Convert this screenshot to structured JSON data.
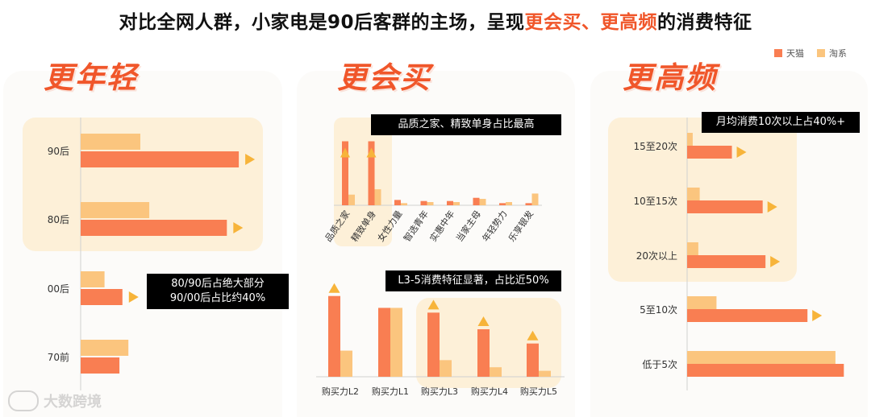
{
  "title": {
    "part1": "对比全网人群，小家电是90后客群的主场，呈现",
    "hl1": "更会买",
    "sep": "、",
    "hl2": "更高频",
    "part2": "的消费特征"
  },
  "legend": {
    "items": [
      {
        "label": "天猫",
        "color": "#f97e52"
      },
      {
        "label": "淘系",
        "color": "#fbc57e"
      }
    ]
  },
  "colors": {
    "tmall": "#f97e52",
    "taoxi": "#fbc57e",
    "highlight": "#fdf0d8",
    "arrow": "#f7b43a",
    "accent": "#f0562a"
  },
  "panels": {
    "younger": {
      "title": "更年轻",
      "callout_line1": "80/90后占绝大部分",
      "callout_line2": "90/00后占比约40%"
    },
    "buyer": {
      "title": "更会买",
      "callout1": "品质之家、精致单身占比最高",
      "callout2": "L3-5消费特征显著，占比近50%"
    },
    "frequent": {
      "title": "更高频",
      "callout": "月均消费10次以上占40%+"
    }
  },
  "watermark": {
    "text": "大数跨境"
  },
  "chart_data": [
    {
      "type": "bar",
      "orientation": "horizontal",
      "title": "更年轻",
      "categories": [
        "90后",
        "80后",
        "00后",
        "70前"
      ],
      "series": [
        {
          "name": "淘系",
          "values": [
            20,
            23,
            8,
            16
          ]
        },
        {
          "name": "天猫",
          "values": [
            53,
            49,
            14,
            13
          ]
        }
      ],
      "highlighted": [
        "90后",
        "80后"
      ],
      "arrows": [
        "90后",
        "80后",
        "00后"
      ]
    },
    {
      "type": "bar",
      "title": "更会买",
      "categories": [
        "品质之家",
        "精致单身",
        "女性力量",
        "智选青年",
        "实惠中年",
        "当家主母",
        "年轻势力",
        "乐享银发"
      ],
      "series": [
        {
          "name": "天猫",
          "values": [
            30,
            30,
            2.5,
            2,
            2,
            3.5,
            1,
            1
          ]
        },
        {
          "name": "淘系",
          "values": [
            5,
            7.5,
            1,
            1.5,
            1.5,
            3,
            1.5,
            5.5
          ]
        }
      ],
      "highlighted": [
        "品质之家",
        "精致单身"
      ],
      "arrows": [
        "品质之家",
        "精致单身"
      ]
    },
    {
      "type": "bar",
      "categories": [
        "购买力L2",
        "购买力L1",
        "购买力L3",
        "购买力L4",
        "购买力L5"
      ],
      "series": [
        {
          "name": "天猫",
          "values": [
            34,
            29,
            27,
            20,
            14
          ]
        },
        {
          "name": "淘系",
          "values": [
            11,
            29,
            7,
            4,
            2.5
          ]
        }
      ],
      "highlighted": [
        "购买力L3",
        "购买力L4",
        "购买力L5"
      ],
      "arrows": [
        "购买力L2",
        "购买力L3",
        "购买力L4",
        "购买力L5"
      ]
    },
    {
      "type": "bar",
      "orientation": "horizontal",
      "title": "更高频",
      "categories": [
        "15至20次",
        "10至15次",
        "20次以上",
        "5至10次",
        "低于5次"
      ],
      "series": [
        {
          "name": "淘系",
          "values": [
            2,
            4.5,
            4,
            10.5,
            53
          ]
        },
        {
          "name": "天猫",
          "values": [
            16,
            27,
            28,
            43,
            56
          ]
        }
      ],
      "highlighted": [
        "15至20次",
        "10至15次",
        "20次以上"
      ],
      "arrows": [
        "15至20次",
        "10至15次",
        "20次以上",
        "5至10次"
      ]
    }
  ]
}
